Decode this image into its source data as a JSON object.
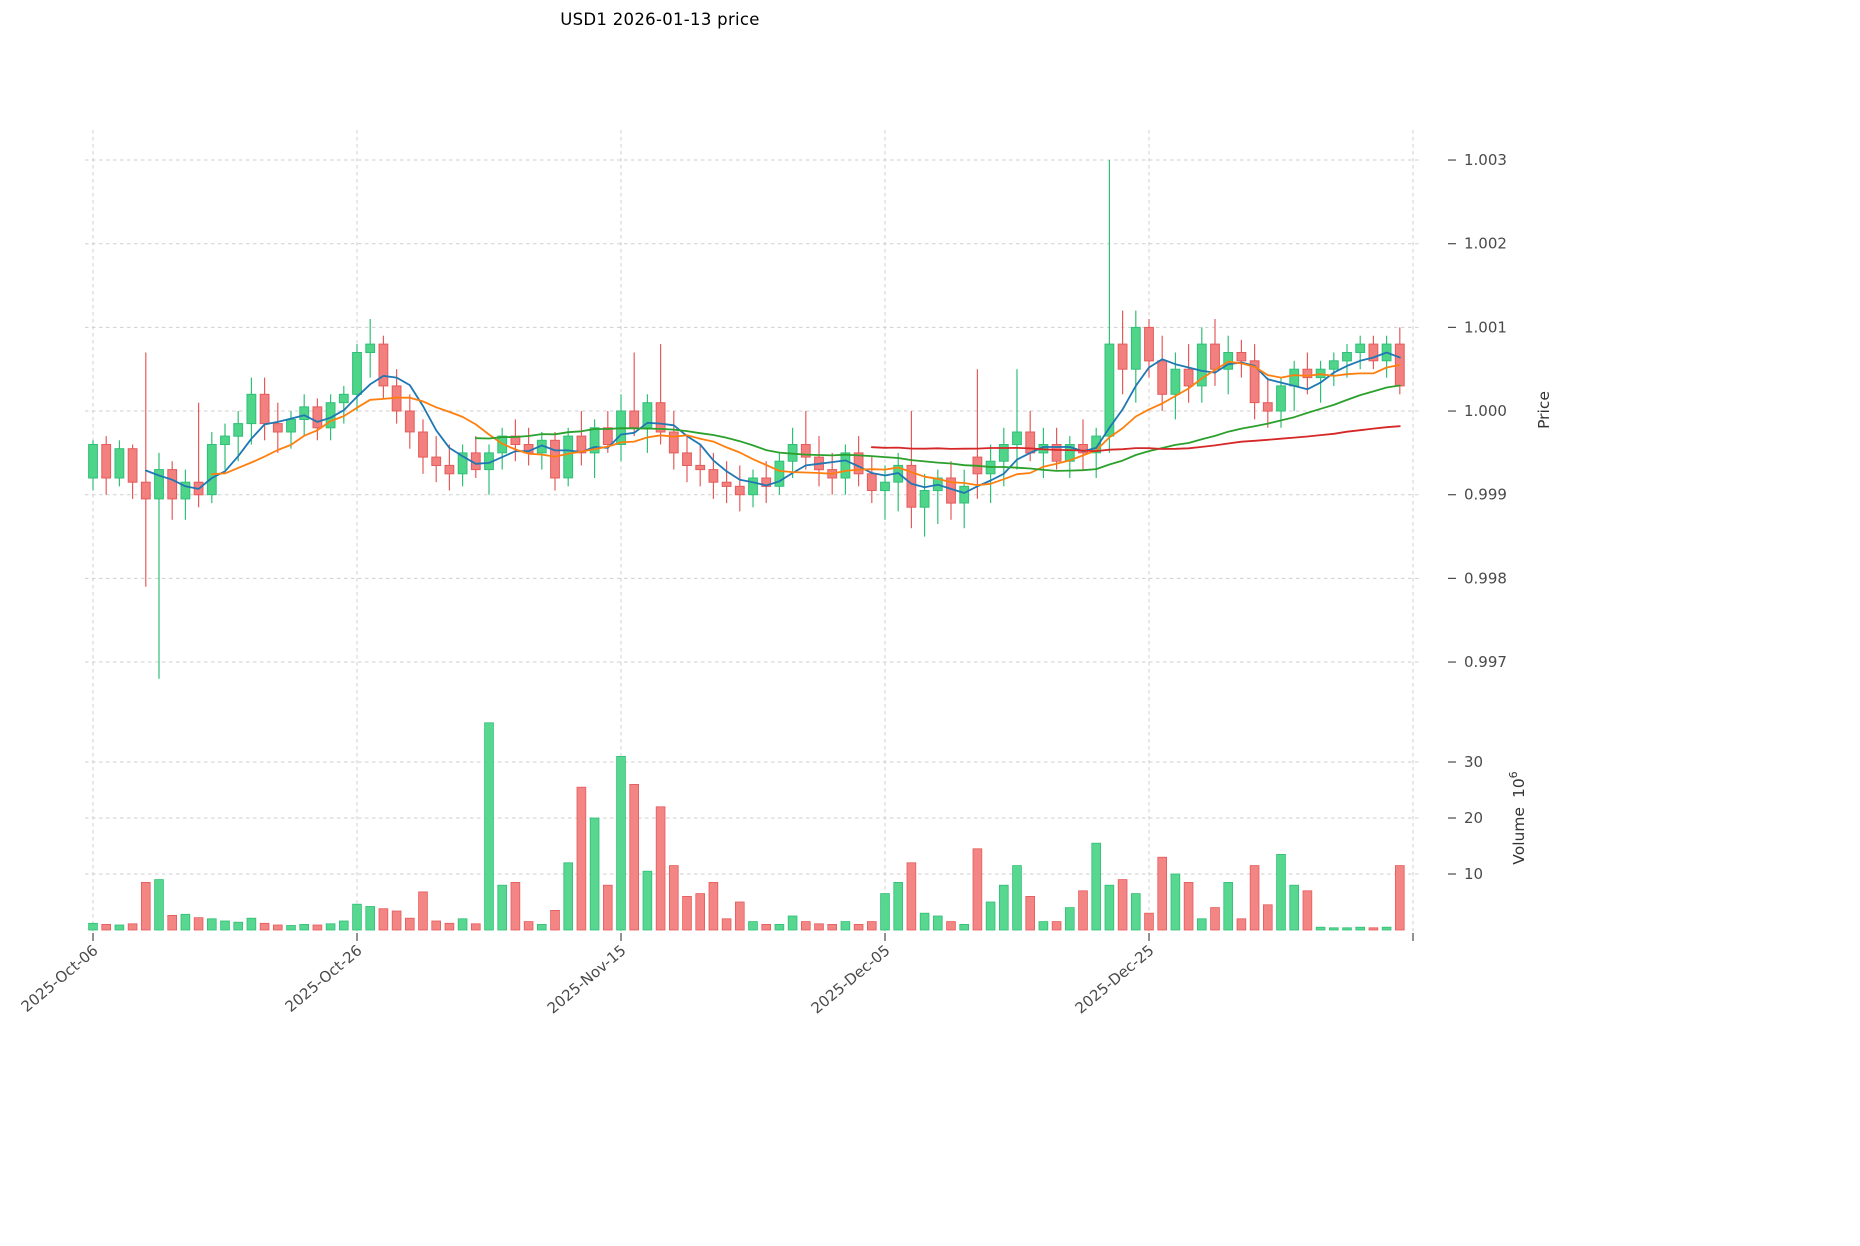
{
  "title": "USD1  2026-01-13  price",
  "colors": {
    "up": "#4fd58a",
    "up_edge": "#2fbf76",
    "down": "#f2807e",
    "down_edge": "#e45b5b",
    "grid": "#cfcfcf",
    "tick_text": "#4a4a4a",
    "axis_title_text": "#333333"
  },
  "price_axis": {
    "label": "Price",
    "ticks": [
      {
        "value": 0.997,
        "label": "0.997"
      },
      {
        "value": 0.998,
        "label": "0.998"
      },
      {
        "value": 0.999,
        "label": "0.999"
      },
      {
        "value": 1.0,
        "label": "1.000"
      },
      {
        "value": 1.001,
        "label": "1.001"
      },
      {
        "value": 1.002,
        "label": "1.002"
      },
      {
        "value": 1.003,
        "label": "1.003"
      }
    ]
  },
  "volume_axis": {
    "label": "Volume",
    "unit_base": "10",
    "unit_exponent": "6",
    "ticks": [
      {
        "value": 10,
        "label": "10"
      },
      {
        "value": 20,
        "label": "20"
      },
      {
        "value": 30,
        "label": "30"
      }
    ]
  },
  "x_axis": {
    "ticks": [
      {
        "index": 0,
        "label": "2025-Oct-06"
      },
      {
        "index": 20,
        "label": "2025-Oct-26"
      },
      {
        "index": 40,
        "label": "2025-Nov-15"
      },
      {
        "index": 60,
        "label": "2025-Dec-05"
      },
      {
        "index": 80,
        "label": "2025-Dec-25"
      },
      {
        "index": 100,
        "label": ""
      }
    ]
  },
  "chart_data": {
    "type": "candlestick",
    "symbol": "USD1",
    "as_of_date": "2026-01-13",
    "price_ylim": [
      0.996666,
      1.003359
    ],
    "volume_ylim_millions": [
      0,
      41
    ],
    "grid": true,
    "legend": "none",
    "moving_averages": [
      {
        "name": "MA5",
        "window": 5,
        "color": "#1f77b4"
      },
      {
        "name": "MA10",
        "window": 10,
        "color": "#ff7f0e"
      },
      {
        "name": "MA30",
        "window": 30,
        "color": "#2ca02c"
      },
      {
        "name": "MA60",
        "window": 60,
        "color": "#d62728"
      }
    ],
    "x": [
      "2025-10-06",
      "2025-10-07",
      "2025-10-08",
      "2025-10-09",
      "2025-10-10",
      "2025-10-11",
      "2025-10-12",
      "2025-10-13",
      "2025-10-14",
      "2025-10-15",
      "2025-10-16",
      "2025-10-17",
      "2025-10-18",
      "2025-10-19",
      "2025-10-20",
      "2025-10-21",
      "2025-10-22",
      "2025-10-23",
      "2025-10-24",
      "2025-10-25",
      "2025-10-26",
      "2025-10-27",
      "2025-10-28",
      "2025-10-29",
      "2025-10-30",
      "2025-10-31",
      "2025-11-01",
      "2025-11-02",
      "2025-11-03",
      "2025-11-04",
      "2025-11-05",
      "2025-11-06",
      "2025-11-07",
      "2025-11-08",
      "2025-11-09",
      "2025-11-10",
      "2025-11-11",
      "2025-11-12",
      "2025-11-13",
      "2025-11-14",
      "2025-11-15",
      "2025-11-16",
      "2025-11-17",
      "2025-11-18",
      "2025-11-19",
      "2025-11-20",
      "2025-11-21",
      "2025-11-22",
      "2025-11-23",
      "2025-11-24",
      "2025-11-25",
      "2025-11-26",
      "2025-11-27",
      "2025-11-28",
      "2025-11-29",
      "2025-11-30",
      "2025-12-01",
      "2025-12-02",
      "2025-12-03",
      "2025-12-04",
      "2025-12-05",
      "2025-12-06",
      "2025-12-07",
      "2025-12-08",
      "2025-12-09",
      "2025-12-10",
      "2025-12-11",
      "2025-12-12",
      "2025-12-13",
      "2025-12-14",
      "2025-12-15",
      "2025-12-16",
      "2025-12-17",
      "2025-12-18",
      "2025-12-19",
      "2025-12-20",
      "2025-12-21",
      "2025-12-22",
      "2025-12-23",
      "2025-12-24",
      "2025-12-25",
      "2025-12-26",
      "2025-12-27",
      "2025-12-28",
      "2025-12-29",
      "2025-12-30",
      "2025-12-31",
      "2026-01-01",
      "2026-01-02",
      "2026-01-03",
      "2026-01-04",
      "2026-01-05",
      "2026-01-06",
      "2026-01-07",
      "2026-01-08",
      "2026-01-09",
      "2026-01-10",
      "2026-01-11",
      "2026-01-12",
      "2026-01-13"
    ],
    "ohlcv": [
      [
        0.9992,
        0.99965,
        0.99905,
        0.9996,
        1.2
      ],
      [
        0.9996,
        0.9997,
        0.999,
        0.9992,
        1.0
      ],
      [
        0.9992,
        0.99965,
        0.9991,
        0.99955,
        0.9
      ],
      [
        0.99955,
        0.9996,
        0.99895,
        0.99915,
        1.1
      ],
      [
        0.99915,
        1.0007,
        0.9979,
        0.99895,
        8.5
      ],
      [
        0.99895,
        0.9995,
        0.9968,
        0.9993,
        9.0
      ],
      [
        0.9993,
        0.9994,
        0.9987,
        0.99895,
        2.6
      ],
      [
        0.99895,
        0.9993,
        0.9987,
        0.99915,
        2.8
      ],
      [
        0.99915,
        1.0001,
        0.99885,
        0.999,
        2.2
      ],
      [
        0.999,
        0.99975,
        0.9989,
        0.9996,
        2.0
      ],
      [
        0.9996,
        0.99985,
        0.9993,
        0.9997,
        1.6
      ],
      [
        0.9997,
        1.0,
        0.9994,
        0.99985,
        1.4
      ],
      [
        0.99985,
        1.0004,
        0.9996,
        1.0002,
        2.1
      ],
      [
        1.0002,
        1.0004,
        0.99965,
        0.99985,
        1.2
      ],
      [
        0.99985,
        1.0001,
        0.9995,
        0.99975,
        0.9
      ],
      [
        0.99975,
        1.0,
        0.99955,
        0.9999,
        0.8
      ],
      [
        0.9999,
        1.0002,
        0.9997,
        1.00005,
        1.0
      ],
      [
        1.00005,
        1.00015,
        0.99965,
        0.9998,
        0.9
      ],
      [
        0.9998,
        1.0002,
        0.99965,
        1.0001,
        1.1
      ],
      [
        1.0001,
        1.0003,
        0.99985,
        1.0002,
        1.6
      ],
      [
        1.0002,
        1.0008,
        1.0,
        1.0007,
        4.6
      ],
      [
        1.0007,
        1.0011,
        1.0004,
        1.0008,
        4.2
      ],
      [
        1.0008,
        1.0009,
        1.00015,
        1.0003,
        3.8
      ],
      [
        1.0003,
        1.0005,
        0.99985,
        1.0,
        3.4
      ],
      [
        1.0,
        1.0002,
        0.99955,
        0.99975,
        2.1
      ],
      [
        0.99975,
        0.9999,
        0.99925,
        0.99945,
        6.8
      ],
      [
        0.99945,
        0.9997,
        0.99915,
        0.99935,
        1.6
      ],
      [
        0.99935,
        0.9996,
        0.99905,
        0.99925,
        1.2
      ],
      [
        0.99925,
        0.9996,
        0.9991,
        0.9995,
        2.0
      ],
      [
        0.9995,
        0.9997,
        0.9992,
        0.9993,
        1.1
      ],
      [
        0.9993,
        0.9996,
        0.999,
        0.9995,
        37.0
      ],
      [
        0.9995,
        0.9998,
        0.9993,
        0.9997,
        8.0
      ],
      [
        0.9997,
        0.9999,
        0.9994,
        0.9996,
        8.5
      ],
      [
        0.9996,
        0.9998,
        0.99935,
        0.9995,
        1.5
      ],
      [
        0.9995,
        0.99975,
        0.9993,
        0.99965,
        1.0
      ],
      [
        0.99965,
        0.99975,
        0.99905,
        0.9992,
        3.5
      ],
      [
        0.9992,
        0.9998,
        0.9991,
        0.9997,
        12.0
      ],
      [
        0.9997,
        1.0,
        0.99935,
        0.9995,
        25.5
      ],
      [
        0.9995,
        0.9999,
        0.9992,
        0.9998,
        20.0
      ],
      [
        0.9998,
        1.0,
        0.9995,
        0.9996,
        8.0
      ],
      [
        0.9996,
        1.0002,
        0.9994,
        1.0,
        31.0
      ],
      [
        1.0,
        1.0007,
        0.9997,
        0.9998,
        26.0
      ],
      [
        0.9998,
        1.0002,
        0.9995,
        1.0001,
        10.5
      ],
      [
        1.0001,
        1.0008,
        0.9996,
        0.99975,
        22.0
      ],
      [
        0.99975,
        1.0,
        0.9993,
        0.9995,
        11.5
      ],
      [
        0.9995,
        0.9997,
        0.99915,
        0.99935,
        6.0
      ],
      [
        0.99935,
        0.9996,
        0.9991,
        0.9993,
        6.5
      ],
      [
        0.9993,
        0.9995,
        0.99895,
        0.99915,
        8.5
      ],
      [
        0.99915,
        0.9994,
        0.9989,
        0.9991,
        2.0
      ],
      [
        0.9991,
        0.99935,
        0.9988,
        0.999,
        5.0
      ],
      [
        0.999,
        0.9993,
        0.99885,
        0.9992,
        1.5
      ],
      [
        0.9992,
        0.9994,
        0.9989,
        0.9991,
        1.0
      ],
      [
        0.9991,
        0.9995,
        0.999,
        0.9994,
        1.0
      ],
      [
        0.9994,
        0.9998,
        0.9992,
        0.9996,
        2.5
      ],
      [
        0.9996,
        1.0,
        0.9993,
        0.99945,
        1.5
      ],
      [
        0.99945,
        0.9997,
        0.9991,
        0.9993,
        1.1
      ],
      [
        0.9993,
        0.9995,
        0.999,
        0.9992,
        1.0
      ],
      [
        0.9992,
        0.9996,
        0.999,
        0.9995,
        1.5
      ],
      [
        0.9995,
        0.9997,
        0.9991,
        0.99925,
        1.0
      ],
      [
        0.99925,
        0.99945,
        0.9989,
        0.99905,
        1.5
      ],
      [
        0.99905,
        0.99935,
        0.9987,
        0.99915,
        6.5
      ],
      [
        0.99915,
        0.9995,
        0.9988,
        0.99935,
        8.5
      ],
      [
        0.99935,
        1.0,
        0.9986,
        0.99885,
        12.0
      ],
      [
        0.99885,
        0.99925,
        0.9985,
        0.99905,
        3.0
      ],
      [
        0.99905,
        0.9993,
        0.99865,
        0.9992,
        2.5
      ],
      [
        0.9992,
        0.9994,
        0.9987,
        0.9989,
        1.5
      ],
      [
        0.9989,
        0.9993,
        0.9986,
        0.9991,
        1.0
      ],
      [
        0.99945,
        1.0005,
        0.99895,
        0.99925,
        14.5
      ],
      [
        0.99925,
        0.9996,
        0.9989,
        0.9994,
        5.0
      ],
      [
        0.9994,
        0.9998,
        0.9991,
        0.9996,
        8.0
      ],
      [
        0.9996,
        1.0005,
        0.9993,
        0.99975,
        11.5
      ],
      [
        0.99975,
        1.0,
        0.9994,
        0.9995,
        6.0
      ],
      [
        0.9995,
        0.9998,
        0.9992,
        0.9996,
        1.5
      ],
      [
        0.9996,
        0.9998,
        0.9993,
        0.9994,
        1.5
      ],
      [
        0.9994,
        0.9997,
        0.9992,
        0.9996,
        4.0
      ],
      [
        0.9996,
        0.9999,
        0.9993,
        0.9995,
        7.0
      ],
      [
        0.9995,
        0.9998,
        0.9992,
        0.9997,
        15.5
      ],
      [
        0.9997,
        1.003,
        0.9995,
        1.0008,
        8.0
      ],
      [
        1.0008,
        1.0012,
        1.0002,
        1.0005,
        9.0
      ],
      [
        1.0005,
        1.0012,
        1.0001,
        1.001,
        6.5
      ],
      [
        1.001,
        1.0011,
        1.0004,
        1.0006,
        3.0
      ],
      [
        1.0006,
        1.0009,
        1.0,
        1.0002,
        13.0
      ],
      [
        1.0002,
        1.0007,
        0.9999,
        1.0005,
        10.0
      ],
      [
        1.0005,
        1.0008,
        1.0001,
        1.0003,
        8.5
      ],
      [
        1.0003,
        1.001,
        1.0001,
        1.0008,
        2.0
      ],
      [
        1.0008,
        1.0011,
        1.0003,
        1.0005,
        4.0
      ],
      [
        1.0005,
        1.0009,
        1.0002,
        1.0007,
        8.5
      ],
      [
        1.0007,
        1.00085,
        1.0004,
        1.0006,
        2.0
      ],
      [
        1.0006,
        1.0008,
        0.9999,
        1.0001,
        11.5
      ],
      [
        1.0001,
        1.0004,
        0.9998,
        1.0,
        4.5
      ],
      [
        1.0,
        1.0004,
        0.9998,
        1.0003,
        13.5
      ],
      [
        1.0003,
        1.0006,
        1.0,
        1.0005,
        8.0
      ],
      [
        1.0005,
        1.0007,
        1.0002,
        1.0004,
        7.0
      ],
      [
        1.0004,
        1.0006,
        1.0001,
        1.0005,
        0.5
      ],
      [
        1.0005,
        1.0007,
        1.0003,
        1.0006,
        0.4
      ],
      [
        1.0006,
        1.0008,
        1.0004,
        1.0007,
        0.4
      ],
      [
        1.0007,
        1.0009,
        1.0005,
        1.0008,
        0.5
      ],
      [
        1.0008,
        1.0009,
        1.0005,
        1.0006,
        0.4
      ],
      [
        1.0006,
        1.0009,
        1.0004,
        1.0008,
        0.5
      ],
      [
        1.0008,
        1.001,
        1.0002,
        1.0003,
        11.5
      ]
    ]
  }
}
